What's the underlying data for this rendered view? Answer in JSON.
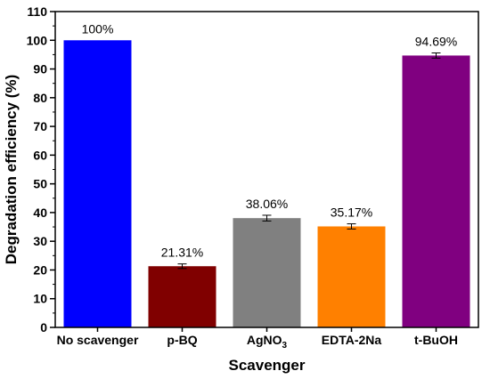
{
  "chart_data": {
    "type": "bar",
    "categories": [
      "No scavenger",
      "p-BQ",
      "AgNO3",
      "EDTA-2Na",
      "t-BuOH"
    ],
    "values": [
      100,
      21.31,
      38.06,
      35.17,
      94.69
    ],
    "errors": [
      0,
      0.8,
      1.0,
      0.9,
      0.9
    ],
    "data_labels": [
      "100%",
      "21.31%",
      "38.06%",
      "35.17%",
      "94.69%"
    ],
    "colors": [
      "#0000ff",
      "#800000",
      "#808080",
      "#ff8000",
      "#800080"
    ],
    "xlabel": "Scavenger",
    "ylabel": "Degradation efficiency (%)",
    "ylim": [
      0,
      110
    ],
    "yticks": [
      0,
      10,
      20,
      30,
      40,
      50,
      60,
      70,
      80,
      90,
      100,
      110
    ],
    "grid": false,
    "legend": "none"
  }
}
